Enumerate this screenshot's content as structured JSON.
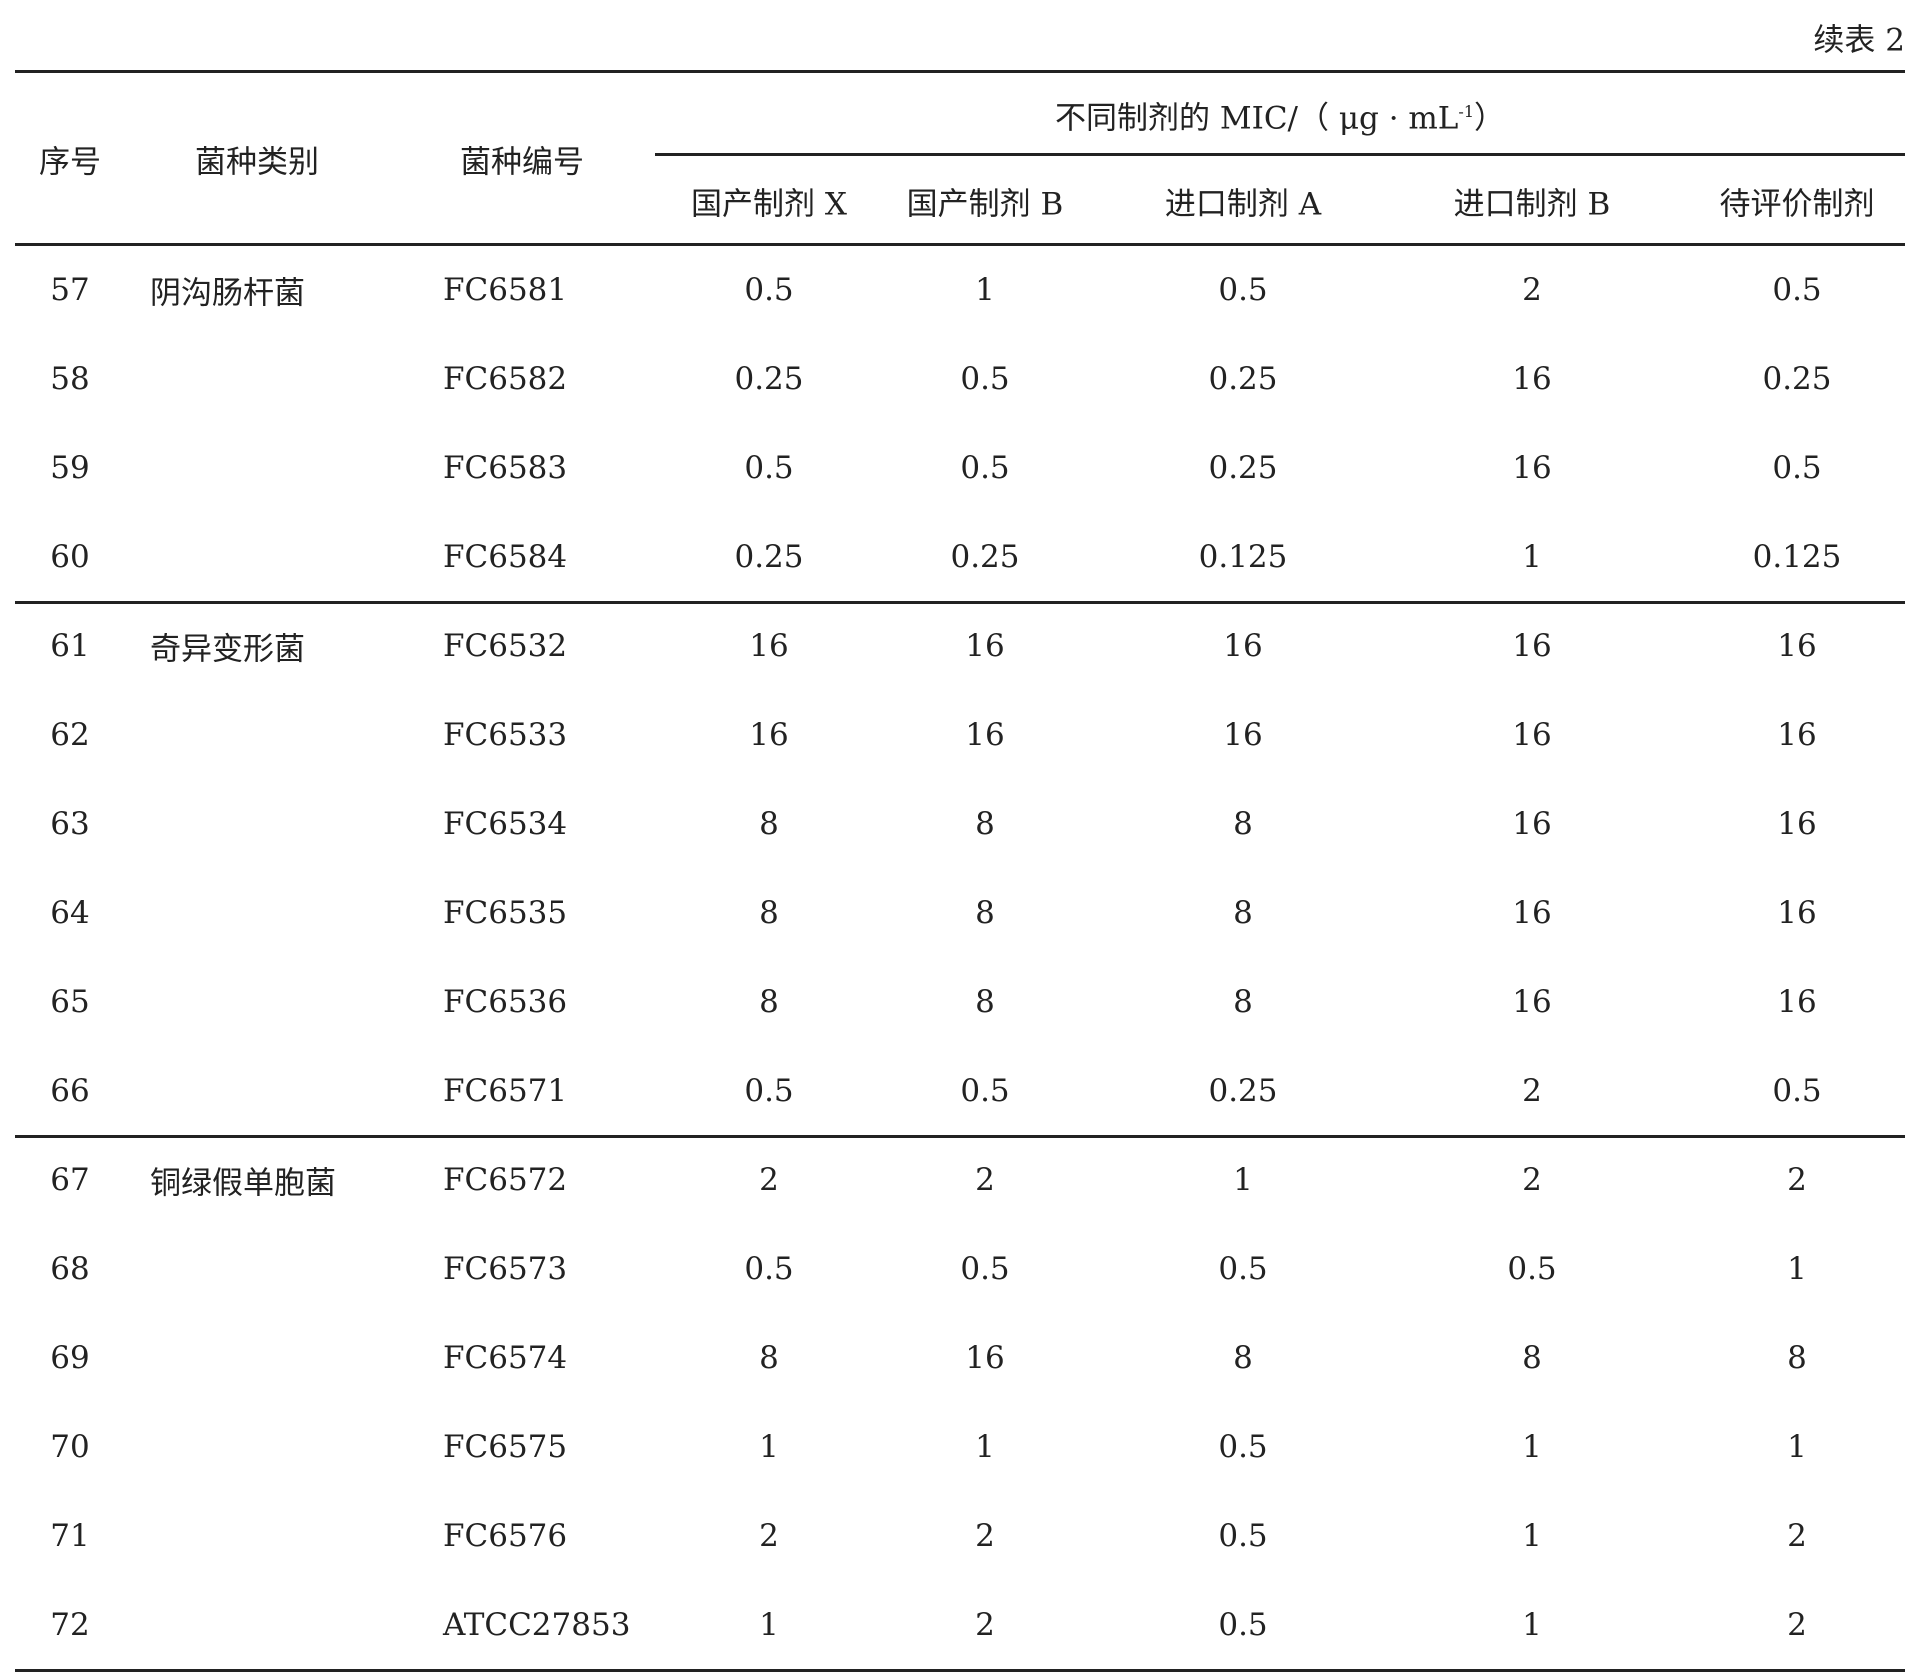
{
  "caption": "续表 2",
  "header": {
    "seq": "序号",
    "category": "菌种类别",
    "code": "菌种编号",
    "group_title": "不同制剂的 MIC/（ μg · mL",
    "group_unit_sup": "-1",
    "group_close": "）",
    "columns": [
      "国产制剂 X",
      "国产制剂 B",
      "进口制剂 A",
      "进口制剂 B",
      "待评价制剂"
    ]
  },
  "groups": [
    {
      "category": "阴沟肠杆菌",
      "rows": [
        [
          "57",
          "FC6581",
          "0.5",
          "1",
          "0.5",
          "2",
          "0.5"
        ],
        [
          "58",
          "FC6582",
          "0.25",
          "0.5",
          "0.25",
          "16",
          "0.25"
        ],
        [
          "59",
          "FC6583",
          "0.5",
          "0.5",
          "0.25",
          "16",
          "0.5"
        ],
        [
          "60",
          "FC6584",
          "0.25",
          "0.25",
          "0.125",
          "1",
          "0.125"
        ]
      ]
    },
    {
      "category": "奇异变形菌",
      "rows": [
        [
          "61",
          "FC6532",
          "16",
          "16",
          "16",
          "16",
          "16"
        ],
        [
          "62",
          "FC6533",
          "16",
          "16",
          "16",
          "16",
          "16"
        ],
        [
          "63",
          "FC6534",
          "8",
          "8",
          "8",
          "16",
          "16"
        ],
        [
          "64",
          "FC6535",
          "8",
          "8",
          "8",
          "16",
          "16"
        ],
        [
          "65",
          "FC6536",
          "8",
          "8",
          "8",
          "16",
          "16"
        ],
        [
          "66",
          "FC6571",
          "0.5",
          "0.5",
          "0.25",
          "2",
          "0.5"
        ]
      ]
    },
    {
      "category": "铜绿假单胞菌",
      "rows": [
        [
          "67",
          "FC6572",
          "2",
          "2",
          "1",
          "2",
          "2"
        ],
        [
          "68",
          "FC6573",
          "0.5",
          "0.5",
          "0.5",
          "0.5",
          "1"
        ],
        [
          "69",
          "FC6574",
          "8",
          "16",
          "8",
          "8",
          "8"
        ],
        [
          "70",
          "FC6575",
          "1",
          "1",
          "0.5",
          "1",
          "1"
        ],
        [
          "71",
          "FC6576",
          "2",
          "2",
          "0.5",
          "1",
          "2"
        ],
        [
          "72",
          "ATCC27853",
          "1",
          "2",
          "0.5",
          "1",
          "2"
        ]
      ]
    }
  ]
}
